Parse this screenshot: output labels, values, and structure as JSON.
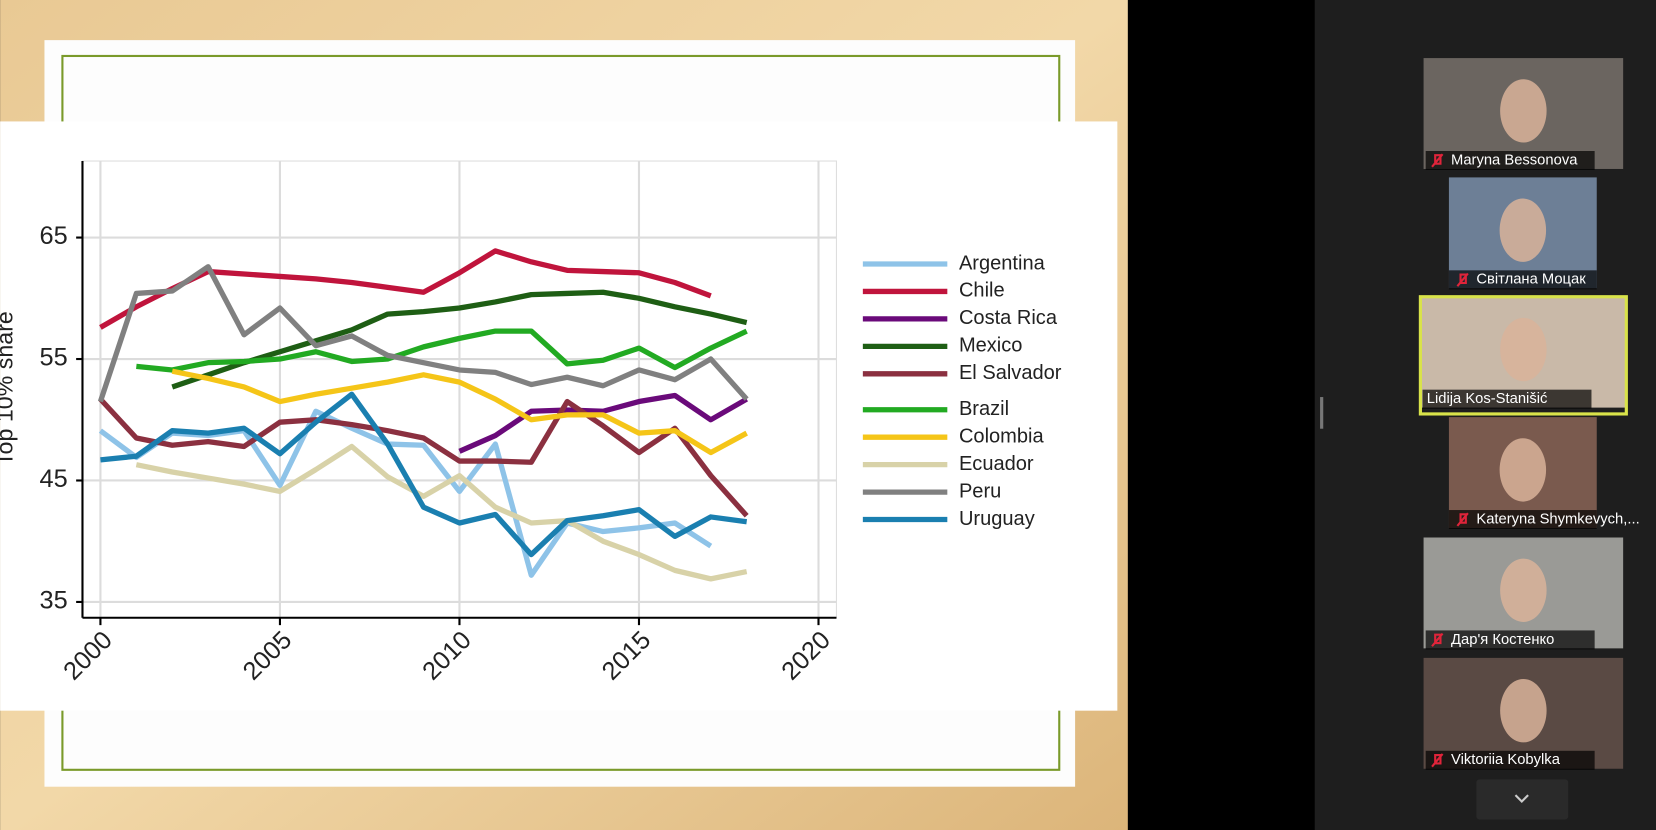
{
  "chart_data": {
    "type": "line",
    "y_label": "Top 10% share",
    "x": [
      2000,
      2001,
      2002,
      2003,
      2004,
      2005,
      2006,
      2007,
      2008,
      2009,
      2010,
      2011,
      2012,
      2013,
      2014,
      2015,
      2016,
      2017,
      2018
    ],
    "xlim": [
      1999.5,
      2020.5
    ],
    "xticks": [
      2000,
      2005,
      2010,
      2015,
      2020
    ],
    "ylim": [
      33.7,
      71.3
    ],
    "yticks": [
      35,
      45,
      55,
      65
    ],
    "grid": true,
    "series": [
      {
        "name": "Argentina",
        "color": "#8ec3e8",
        "values": [
          49.1,
          46.9,
          48.9,
          48.7,
          49.1,
          44.6,
          50.7,
          49.3,
          48.0,
          47.9,
          44.1,
          48.0,
          37.2,
          41.5,
          40.8,
          41.1,
          41.5,
          39.6,
          null
        ]
      },
      {
        "name": "Chile",
        "color": "#c0143c",
        "values": [
          57.6,
          59.3,
          60.8,
          62.2,
          62.0,
          61.8,
          61.6,
          61.3,
          60.9,
          60.5,
          62.1,
          63.9,
          63.0,
          62.3,
          62.2,
          62.1,
          61.3,
          60.2,
          null
        ]
      },
      {
        "name": "Costa Rica",
        "color": "#6a0a7a",
        "values": [
          null,
          null,
          null,
          null,
          null,
          null,
          null,
          null,
          null,
          null,
          47.4,
          48.7,
          50.7,
          50.8,
          50.7,
          51.5,
          52.0,
          50.0,
          51.7
        ]
      },
      {
        "name": "Mexico",
        "color": "#1e5e14",
        "values": [
          null,
          null,
          52.7,
          53.7,
          54.7,
          55.6,
          56.5,
          57.4,
          58.7,
          58.9,
          59.2,
          59.7,
          60.3,
          60.4,
          60.5,
          60.0,
          59.3,
          58.7,
          58.0
        ]
      },
      {
        "name": "El Salvador",
        "color": "#8b3040",
        "values": [
          51.7,
          48.5,
          47.9,
          48.2,
          47.8,
          49.8,
          50.0,
          49.6,
          49.1,
          48.5,
          46.6,
          46.6,
          46.5,
          51.5,
          49.5,
          47.3,
          49.3,
          45.4,
          42.1
        ]
      },
      {
        "name": "Brazil",
        "color": "#22aa22",
        "values": [
          null,
          54.4,
          54.1,
          54.7,
          54.8,
          55.0,
          55.6,
          54.8,
          55.0,
          56.0,
          56.7,
          57.3,
          57.3,
          54.6,
          54.9,
          55.9,
          54.3,
          55.9,
          57.3
        ]
      },
      {
        "name": "Colombia",
        "color": "#f5c518",
        "values": [
          null,
          null,
          54.0,
          53.4,
          52.7,
          51.5,
          52.1,
          52.6,
          53.1,
          53.7,
          53.1,
          51.7,
          50.0,
          50.4,
          50.4,
          48.9,
          49.1,
          47.3,
          48.9
        ]
      },
      {
        "name": "Ecuador",
        "color": "#d8d2a8",
        "values": [
          null,
          46.3,
          45.7,
          45.2,
          44.7,
          44.1,
          45.9,
          47.8,
          45.3,
          43.7,
          45.4,
          42.8,
          41.5,
          41.7,
          40.0,
          38.9,
          37.6,
          36.9,
          37.5
        ]
      },
      {
        "name": "Peru",
        "color": "#808080",
        "values": [
          51.5,
          60.4,
          60.6,
          62.6,
          57.0,
          59.2,
          56.1,
          56.9,
          55.3,
          54.7,
          54.1,
          53.9,
          52.9,
          53.5,
          52.8,
          54.1,
          53.3,
          55.0,
          51.7
        ]
      },
      {
        "name": "Uruguay",
        "color": "#1a7fb0",
        "values": [
          46.7,
          47.0,
          49.1,
          48.9,
          49.3,
          47.2,
          49.8,
          52.1,
          48.0,
          42.8,
          41.5,
          42.2,
          38.9,
          41.7,
          42.1,
          42.6,
          40.4,
          42.0,
          41.6
        ]
      }
    ]
  },
  "participants": [
    {
      "name": "Maryna Bessonova",
      "muted": true
    },
    {
      "name": "Світлана  Моцак",
      "muted": true
    },
    {
      "name": "Lidija Kos-Stanišić",
      "muted": false
    },
    {
      "name": "Kateryna Shymkevych,...",
      "muted": true
    },
    {
      "name": "Дар'я Костенко",
      "muted": true
    },
    {
      "name": "Viktoriia Kobylka",
      "muted": true
    }
  ]
}
